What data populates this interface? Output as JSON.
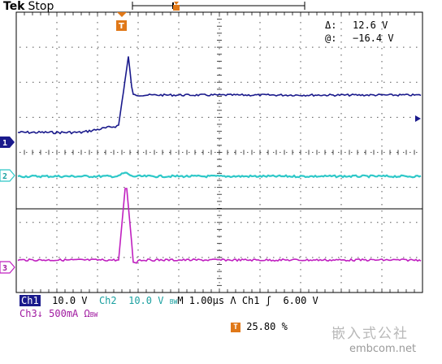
{
  "header": {
    "brand": "Tek",
    "state": "Stop"
  },
  "trigger_marker": "T",
  "readouts": {
    "delta_label": "Δ:",
    "delta_value": "12.6 V",
    "at_label": "@:",
    "at_value": "−16.4 V"
  },
  "channels": [
    {
      "label": "1",
      "color": "#1a1a8c"
    },
    {
      "label": "2",
      "color": "#1aa0a0"
    },
    {
      "label": "3",
      "color": "#a01aa0"
    }
  ],
  "status": {
    "ch1_label": "Ch1",
    "ch1_scale": "10.0 V",
    "ch2_label": "Ch2",
    "ch2_scale": "10.0 V",
    "bw": "BW",
    "timebase": "M 1.00µs",
    "trig_edge": "Λ",
    "trig_source": "Ch1",
    "trig_slope": "ʃ",
    "trig_level": "6.00 V",
    "ch3_label": "Ch3↓",
    "ch3_scale": "500mA Ω",
    "ch3_bw": "BW",
    "trig_position": "25.80 %"
  },
  "watermark": {
    "cn": "嵌入式公社",
    "url": "embcom.net"
  }
}
